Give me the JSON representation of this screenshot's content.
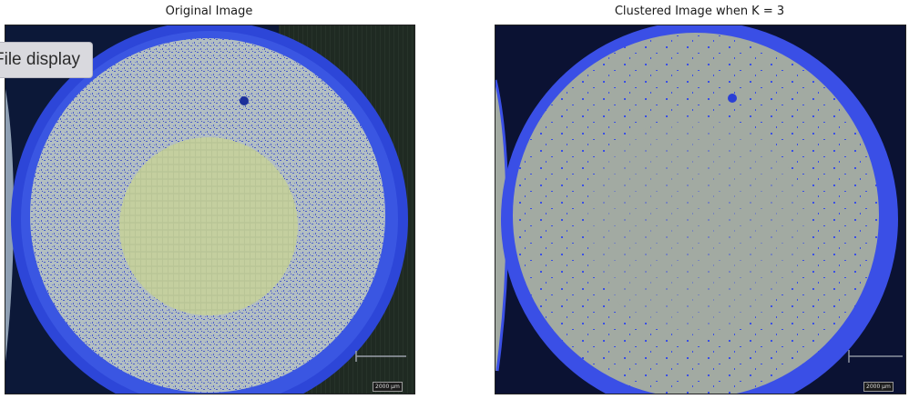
{
  "left_panel": {
    "title": "Original Image",
    "scale_label": "2000 µm"
  },
  "right_panel": {
    "title": "Clustered Image when K = 3",
    "scale_label": "2000 µm"
  },
  "tooltip": {
    "label": "File display"
  },
  "colors": {
    "ring_blue": "#3a4fe6",
    "cluster_gray": "#a2aaa2",
    "dark_bg": "#0b1233",
    "original_center": "#c9d5a6",
    "speckle": "#4758d0"
  }
}
